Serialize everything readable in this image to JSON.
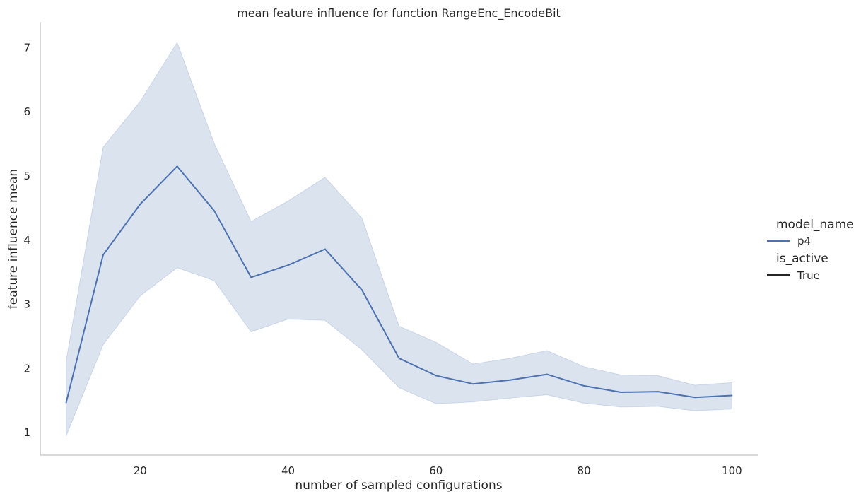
{
  "chart_data": {
    "type": "line",
    "title": "mean feature influence for function RangeEnc_EncodeBit",
    "xlabel": "number of sampled configurations",
    "ylabel": "feature influence mean",
    "xlim": [
      6.5,
      103.5
    ],
    "ylim": [
      0.65,
      7.4
    ],
    "xticks": [
      20,
      40,
      60,
      80,
      100
    ],
    "yticks": [
      1,
      2,
      3,
      4,
      5,
      6,
      7
    ],
    "grid": false,
    "legend_position": "right",
    "colors": {
      "line": "#4c72b0",
      "band": "#4c72b0",
      "axis": "#cccccc"
    },
    "x": [
      10,
      15,
      20,
      25,
      30,
      35,
      40,
      45,
      50,
      55,
      60,
      65,
      70,
      75,
      80,
      85,
      90,
      95,
      100
    ],
    "series": [
      {
        "name": "p4",
        "values": [
          1.47,
          3.77,
          4.56,
          5.15,
          4.46,
          3.42,
          3.61,
          3.86,
          3.22,
          2.16,
          1.89,
          1.76,
          1.82,
          1.91,
          1.73,
          1.63,
          1.64,
          1.55,
          1.58
        ],
        "ci_upper": [
          2.12,
          5.45,
          6.16,
          7.08,
          5.51,
          4.29,
          4.61,
          4.98,
          4.34,
          2.66,
          2.41,
          2.07,
          2.16,
          2.28,
          2.03,
          1.9,
          1.89,
          1.74,
          1.78
        ],
        "ci_lower": [
          0.95,
          2.37,
          3.13,
          3.57,
          3.37,
          2.57,
          2.77,
          2.75,
          2.29,
          1.7,
          1.45,
          1.48,
          1.54,
          1.59,
          1.46,
          1.4,
          1.41,
          1.34,
          1.37
        ]
      }
    ],
    "legend": {
      "hue_title": "model_name",
      "hue_entries": [
        "p4"
      ],
      "style_title": "is_active",
      "style_entries": [
        "True"
      ]
    }
  }
}
